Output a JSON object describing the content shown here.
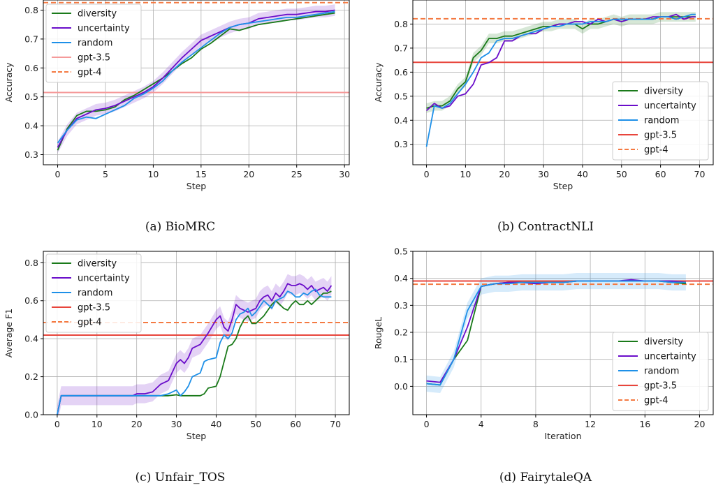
{
  "chart_data": [
    {
      "type": "line",
      "caption": "(a) BioMRC",
      "xlabel": "Step",
      "ylabel": "Accuracy",
      "xlim": [
        -1.5,
        30.5
      ],
      "ylim": [
        0.265,
        0.835
      ],
      "xticks": [
        0,
        5,
        10,
        15,
        20,
        25,
        30
      ],
      "yticks": [
        0.3,
        0.4,
        0.5,
        0.6,
        0.7,
        0.8
      ],
      "grid": true,
      "legend_position": "top-left",
      "x": [
        0,
        1,
        2,
        3,
        4,
        5,
        6,
        7,
        8,
        9,
        10,
        11,
        12,
        13,
        14,
        15,
        16,
        17,
        18,
        19,
        20,
        21,
        22,
        23,
        24,
        25,
        26,
        27,
        28,
        29
      ],
      "series": [
        {
          "name": "diversity",
          "color": "#1a7a1a",
          "style": "solid",
          "values": [
            0.315,
            0.39,
            0.435,
            0.45,
            0.45,
            0.455,
            0.465,
            0.49,
            0.505,
            0.525,
            0.545,
            0.565,
            0.59,
            0.615,
            0.635,
            0.665,
            0.685,
            0.71,
            0.735,
            0.73,
            0.74,
            0.75,
            0.755,
            0.76,
            0.765,
            0.77,
            0.775,
            0.78,
            0.785,
            0.79
          ]
        },
        {
          "name": "uncertainty",
          "color": "#6a0dca",
          "style": "solid",
          "values": [
            0.325,
            0.385,
            0.425,
            0.44,
            0.455,
            0.46,
            0.47,
            0.485,
            0.5,
            0.515,
            0.535,
            0.565,
            0.6,
            0.635,
            0.665,
            0.695,
            0.71,
            0.725,
            0.74,
            0.75,
            0.755,
            0.77,
            0.775,
            0.78,
            0.785,
            0.785,
            0.79,
            0.795,
            0.795,
            0.8
          ]
        },
        {
          "name": "random",
          "color": "#1e90e8",
          "style": "solid",
          "values": [
            0.34,
            0.385,
            0.42,
            0.43,
            0.425,
            0.44,
            0.455,
            0.47,
            0.495,
            0.51,
            0.53,
            0.555,
            0.59,
            0.62,
            0.645,
            0.67,
            0.695,
            0.72,
            0.74,
            0.75,
            0.755,
            0.76,
            0.765,
            0.77,
            0.775,
            0.775,
            0.78,
            0.785,
            0.79,
            0.795
          ]
        },
        {
          "name": "gpt-3.5",
          "color": "#f59a9a",
          "style": "hline",
          "y": 0.515
        },
        {
          "name": "gpt-4",
          "color": "#f47a42",
          "style": "dashed-hline",
          "y": 0.826
        }
      ],
      "band": {
        "series": "uncertainty",
        "width": 0.02
      }
    },
    {
      "type": "line",
      "caption": "(b) ContractNLI",
      "xlabel": "Step",
      "ylabel": "Accuracy",
      "xlim": [
        -3.5,
        73.5
      ],
      "ylim": [
        0.215,
        0.9
      ],
      "xticks": [
        0,
        10,
        20,
        30,
        40,
        50,
        60,
        70
      ],
      "yticks": [
        0.3,
        0.4,
        0.5,
        0.6,
        0.7,
        0.8
      ],
      "grid": true,
      "legend_position": "bottom-right",
      "x": [
        0,
        2,
        4,
        6,
        8,
        10,
        12,
        14,
        16,
        18,
        20,
        22,
        24,
        26,
        28,
        30,
        32,
        34,
        36,
        38,
        40,
        42,
        44,
        46,
        48,
        50,
        52,
        54,
        56,
        58,
        60,
        62,
        64,
        66,
        68,
        69
      ],
      "series": [
        {
          "name": "diversity",
          "color": "#1a7a1a",
          "style": "solid",
          "values": [
            0.45,
            0.46,
            0.46,
            0.48,
            0.53,
            0.56,
            0.66,
            0.69,
            0.74,
            0.74,
            0.75,
            0.75,
            0.76,
            0.77,
            0.78,
            0.79,
            0.79,
            0.8,
            0.8,
            0.8,
            0.78,
            0.8,
            0.8,
            0.81,
            0.82,
            0.81,
            0.82,
            0.82,
            0.82,
            0.82,
            0.83,
            0.83,
            0.83,
            0.83,
            0.83,
            0.83
          ]
        },
        {
          "name": "uncertainty",
          "color": "#6a0dca",
          "style": "solid",
          "values": [
            0.44,
            0.47,
            0.45,
            0.46,
            0.5,
            0.51,
            0.55,
            0.63,
            0.64,
            0.66,
            0.73,
            0.73,
            0.75,
            0.76,
            0.76,
            0.78,
            0.79,
            0.8,
            0.8,
            0.81,
            0.81,
            0.8,
            0.82,
            0.81,
            0.82,
            0.81,
            0.82,
            0.82,
            0.82,
            0.83,
            0.83,
            0.83,
            0.84,
            0.82,
            0.83,
            0.83
          ]
        },
        {
          "name": "random",
          "color": "#1e90e8",
          "style": "solid",
          "values": [
            0.29,
            0.46,
            0.45,
            0.47,
            0.51,
            0.55,
            0.6,
            0.66,
            0.68,
            0.73,
            0.74,
            0.74,
            0.75,
            0.76,
            0.77,
            0.78,
            0.79,
            0.79,
            0.8,
            0.8,
            0.8,
            0.81,
            0.81,
            0.81,
            0.82,
            0.82,
            0.82,
            0.82,
            0.82,
            0.82,
            0.83,
            0.83,
            0.82,
            0.83,
            0.84,
            0.84
          ]
        },
        {
          "name": "gpt-3.5",
          "color": "#e8453c",
          "style": "hline",
          "y": 0.641
        },
        {
          "name": "gpt-4",
          "color": "#f47a42",
          "style": "dashed-hline",
          "y": 0.822
        }
      ],
      "band": {
        "series": "diversity",
        "width": 0.02
      }
    },
    {
      "type": "line",
      "caption": "(c) Unfair_TOS",
      "xlabel": "Step",
      "ylabel": "Average F1",
      "xlim": [
        -3.5,
        73.5
      ],
      "ylim": [
        0.0,
        0.86
      ],
      "xticks": [
        0,
        10,
        20,
        30,
        40,
        50,
        60,
        70
      ],
      "yticks": [
        0.0,
        0.2,
        0.4,
        0.6,
        0.8
      ],
      "grid": true,
      "legend_position": "top-left",
      "x": [
        0,
        1,
        5,
        10,
        15,
        19,
        20,
        22,
        24,
        26,
        28,
        30,
        31,
        32,
        33,
        34,
        36,
        37,
        38,
        40,
        41,
        42,
        43,
        44,
        45,
        46,
        47,
        48,
        49,
        50,
        51,
        52,
        53,
        54,
        55,
        56,
        57,
        58,
        59,
        60,
        61,
        62,
        63,
        64,
        65,
        66,
        67,
        68,
        69
      ],
      "series": [
        {
          "name": "diversity",
          "color": "#1a7a1a",
          "style": "solid",
          "values": [
            0.0,
            0.1,
            0.1,
            0.1,
            0.1,
            0.1,
            0.1,
            0.1,
            0.1,
            0.1,
            0.1,
            0.105,
            0.1,
            0.1,
            0.1,
            0.1,
            0.1,
            0.11,
            0.14,
            0.15,
            0.2,
            0.28,
            0.36,
            0.37,
            0.4,
            0.46,
            0.5,
            0.52,
            0.48,
            0.48,
            0.5,
            0.52,
            0.55,
            0.58,
            0.6,
            0.58,
            0.56,
            0.55,
            0.58,
            0.6,
            0.58,
            0.58,
            0.6,
            0.58,
            0.6,
            0.62,
            0.64,
            0.64,
            0.65
          ]
        },
        {
          "name": "uncertainty",
          "color": "#6a0dca",
          "style": "solid",
          "values": [
            0.0,
            0.1,
            0.1,
            0.1,
            0.1,
            0.1,
            0.11,
            0.11,
            0.12,
            0.16,
            0.18,
            0.27,
            0.29,
            0.27,
            0.3,
            0.35,
            0.37,
            0.4,
            0.43,
            0.5,
            0.52,
            0.46,
            0.44,
            0.5,
            0.58,
            0.56,
            0.55,
            0.54,
            0.55,
            0.56,
            0.6,
            0.62,
            0.63,
            0.6,
            0.64,
            0.62,
            0.65,
            0.69,
            0.68,
            0.68,
            0.69,
            0.68,
            0.66,
            0.68,
            0.65,
            0.66,
            0.67,
            0.65,
            0.68
          ]
        },
        {
          "name": "random",
          "color": "#1e90e8",
          "style": "solid",
          "values": [
            0.0,
            0.1,
            0.1,
            0.1,
            0.1,
            0.1,
            0.1,
            0.1,
            0.1,
            0.1,
            0.11,
            0.13,
            0.1,
            0.12,
            0.15,
            0.2,
            0.22,
            0.28,
            0.29,
            0.3,
            0.38,
            0.42,
            0.4,
            0.43,
            0.5,
            0.53,
            0.54,
            0.56,
            0.52,
            0.54,
            0.57,
            0.6,
            0.58,
            0.56,
            0.6,
            0.61,
            0.62,
            0.65,
            0.64,
            0.62,
            0.62,
            0.64,
            0.63,
            0.65,
            0.66,
            0.63,
            0.62,
            0.62,
            0.62
          ]
        },
        {
          "name": "gpt-3.5",
          "color": "#e8453c",
          "style": "hline",
          "y": 0.419
        },
        {
          "name": "gpt-4",
          "color": "#f47a42",
          "style": "dashed-hline",
          "y": 0.485
        }
      ],
      "band": {
        "series": "uncertainty",
        "width": 0.05
      }
    },
    {
      "type": "line",
      "caption": "(d) FairytaleQA",
      "xlabel": "Iteration",
      "ylabel": "RougeL",
      "xlim": [
        -1,
        21
      ],
      "ylim": [
        -0.105,
        0.5
      ],
      "xticks": [
        0,
        4,
        8,
        12,
        16,
        20
      ],
      "yticks": [
        0.0,
        0.1,
        0.2,
        0.3,
        0.4,
        0.5
      ],
      "grid": true,
      "legend_position": "bottom-right",
      "x": [
        0,
        1,
        2,
        3,
        4,
        5,
        6,
        7,
        8,
        9,
        10,
        11,
        12,
        13,
        14,
        15,
        16,
        17,
        18,
        19
      ],
      "series": [
        {
          "name": "diversity",
          "color": "#1a7a1a",
          "style": "solid",
          "values": [
            0.01,
            0.005,
            0.1,
            0.17,
            0.37,
            0.38,
            0.385,
            0.385,
            0.385,
            0.385,
            0.385,
            0.39,
            0.39,
            0.39,
            0.39,
            0.39,
            0.39,
            0.39,
            0.385,
            0.38
          ]
        },
        {
          "name": "uncertainty",
          "color": "#6a0dca",
          "style": "solid",
          "values": [
            0.02,
            0.015,
            0.1,
            0.22,
            0.37,
            0.38,
            0.385,
            0.385,
            0.38,
            0.385,
            0.385,
            0.39,
            0.39,
            0.39,
            0.39,
            0.395,
            0.39,
            0.39,
            0.39,
            0.385
          ]
        },
        {
          "name": "random",
          "color": "#1e90e8",
          "style": "solid",
          "values": [
            0.01,
            0.005,
            0.1,
            0.28,
            0.37,
            0.38,
            0.38,
            0.385,
            0.385,
            0.385,
            0.385,
            0.39,
            0.39,
            0.39,
            0.39,
            0.39,
            0.39,
            0.39,
            0.385,
            0.385
          ]
        },
        {
          "name": "gpt-3.5",
          "color": "#e8453c",
          "style": "hline",
          "y": 0.39
        },
        {
          "name": "gpt-4",
          "color": "#f47a42",
          "style": "dashed-hline",
          "y": 0.378
        }
      ],
      "band": {
        "series": "random",
        "width": 0.03
      }
    }
  ]
}
